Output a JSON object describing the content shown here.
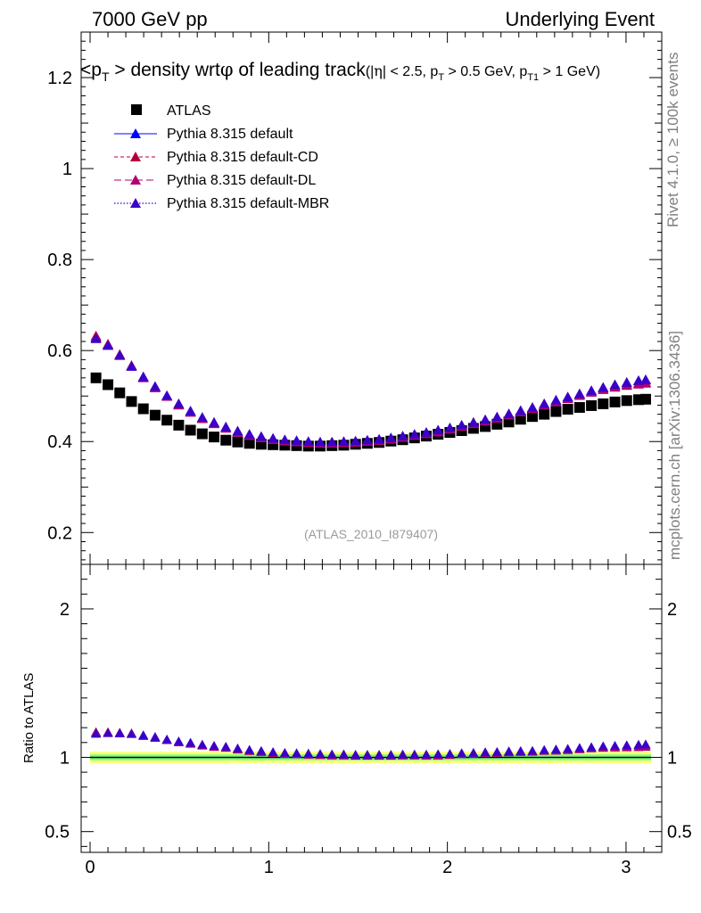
{
  "header": {
    "left": "7000 GeV pp",
    "right": "Underlying Event"
  },
  "plot_title": "<p_T> density wrt φ of leading track (|η| < 2.5, p_T > 0.5 GeV, p_T1 > 1 GeV)",
  "watermark": "(ATLAS_2010_I879407)",
  "side_text": {
    "rivet": "Rivet 4.1.0, ≥ 100k events",
    "mcplots": "mcplots.cern.ch [arXiv:1306.3436]"
  },
  "colors": {
    "atlas": "#000000",
    "default": "#0000ff",
    "cd": "#b0003a",
    "dl": "#b0006e",
    "mbr": "#3b00c8",
    "band_yellow": "#ffff80",
    "band_green": "#80ff80"
  },
  "chart_data": [
    {
      "type": "scatter",
      "title": "<p_T> density wrt φ of leading track",
      "xlabel": "",
      "ylabel": "",
      "xlim": [
        -0.05,
        3.2
      ],
      "ylim": [
        0.13,
        1.3
      ],
      "yticks": [
        0.2,
        0.4,
        0.6,
        0.8,
        1,
        1.2
      ],
      "ytick_labels": [
        "0.2",
        "0.4",
        "0.6",
        "0.8",
        "1",
        "1.2"
      ],
      "legend_position": "top-left",
      "x": [
        0.033,
        0.1,
        0.166,
        0.232,
        0.298,
        0.364,
        0.43,
        0.496,
        0.562,
        0.628,
        0.694,
        0.76,
        0.826,
        0.892,
        0.958,
        1.024,
        1.09,
        1.156,
        1.222,
        1.288,
        1.354,
        1.42,
        1.486,
        1.552,
        1.618,
        1.684,
        1.75,
        1.816,
        1.882,
        1.948,
        2.014,
        2.08,
        2.146,
        2.212,
        2.278,
        2.344,
        2.41,
        2.476,
        2.542,
        2.608,
        2.674,
        2.74,
        2.806,
        2.872,
        2.938,
        3.004,
        3.07,
        3.11
      ],
      "series": [
        {
          "name": "ATLAS",
          "marker": "square",
          "values": [
            0.54,
            0.525,
            0.507,
            0.488,
            0.472,
            0.458,
            0.447,
            0.436,
            0.425,
            0.417,
            0.41,
            0.403,
            0.399,
            0.396,
            0.394,
            0.393,
            0.392,
            0.391,
            0.39,
            0.39,
            0.391,
            0.392,
            0.394,
            0.396,
            0.398,
            0.401,
            0.404,
            0.408,
            0.412,
            0.416,
            0.42,
            0.424,
            0.429,
            0.433,
            0.438,
            0.443,
            0.449,
            0.455,
            0.46,
            0.466,
            0.471,
            0.475,
            0.479,
            0.483,
            0.487,
            0.49,
            0.492,
            0.493
          ]
        },
        {
          "name": "Pythia 8.315 default",
          "marker": "triangle",
          "values": [
            0.628,
            0.612,
            0.59,
            0.566,
            0.542,
            0.52,
            0.5,
            0.482,
            0.466,
            0.452,
            0.441,
            0.431,
            0.422,
            0.415,
            0.41,
            0.406,
            0.403,
            0.401,
            0.399,
            0.398,
            0.398,
            0.399,
            0.4,
            0.402,
            0.404,
            0.407,
            0.411,
            0.415,
            0.419,
            0.424,
            0.429,
            0.435,
            0.441,
            0.447,
            0.453,
            0.46,
            0.467,
            0.474,
            0.482,
            0.49,
            0.497,
            0.504,
            0.511,
            0.518,
            0.524,
            0.529,
            0.533,
            0.535
          ]
        },
        {
          "name": "Pythia 8.315 default-CD",
          "marker": "triangle",
          "values": [
            0.632,
            0.614,
            0.591,
            0.567,
            0.541,
            0.519,
            0.5,
            0.481,
            0.465,
            0.451,
            0.44,
            0.43,
            0.421,
            0.414,
            0.409,
            0.405,
            0.402,
            0.4,
            0.398,
            0.397,
            0.397,
            0.398,
            0.399,
            0.401,
            0.403,
            0.406,
            0.41,
            0.414,
            0.418,
            0.422,
            0.428,
            0.434,
            0.44,
            0.446,
            0.452,
            0.459,
            0.466,
            0.473,
            0.481,
            0.488,
            0.495,
            0.502,
            0.509,
            0.515,
            0.521,
            0.525,
            0.528,
            0.53
          ]
        },
        {
          "name": "Pythia 8.315 default-DL",
          "marker": "triangle",
          "values": [
            0.63,
            0.613,
            0.591,
            0.566,
            0.54,
            0.518,
            0.499,
            0.48,
            0.464,
            0.45,
            0.439,
            0.429,
            0.42,
            0.413,
            0.408,
            0.404,
            0.401,
            0.399,
            0.397,
            0.396,
            0.396,
            0.397,
            0.398,
            0.4,
            0.402,
            0.405,
            0.409,
            0.413,
            0.417,
            0.421,
            0.427,
            0.433,
            0.439,
            0.445,
            0.451,
            0.458,
            0.465,
            0.472,
            0.48,
            0.487,
            0.494,
            0.501,
            0.508,
            0.514,
            0.519,
            0.523,
            0.526,
            0.528
          ]
        },
        {
          "name": "Pythia 8.315 default-MBR",
          "marker": "triangle",
          "values": [
            0.626,
            0.611,
            0.589,
            0.565,
            0.542,
            0.521,
            0.501,
            0.483,
            0.467,
            0.453,
            0.442,
            0.432,
            0.423,
            0.416,
            0.411,
            0.407,
            0.404,
            0.402,
            0.4,
            0.399,
            0.399,
            0.4,
            0.401,
            0.403,
            0.405,
            0.408,
            0.412,
            0.416,
            0.42,
            0.425,
            0.43,
            0.436,
            0.442,
            0.448,
            0.454,
            0.461,
            0.468,
            0.475,
            0.483,
            0.491,
            0.498,
            0.505,
            0.512,
            0.519,
            0.525,
            0.53,
            0.534,
            0.536
          ]
        }
      ]
    },
    {
      "type": "line",
      "title": "",
      "ylabel": "Ratio to ATLAS",
      "xlabel": "",
      "xlim": [
        -0.05,
        3.2
      ],
      "ylim": [
        0.36,
        2.3
      ],
      "xticks": [
        0,
        1,
        2,
        3
      ],
      "xtick_labels": [
        "0",
        "1",
        "2",
        "3"
      ],
      "yticks": [
        0.5,
        1,
        2
      ],
      "ytick_labels": [
        "0.5",
        "1",
        "2"
      ],
      "band": {
        "yellow": [
          0.96,
          1.04
        ],
        "green": [
          0.98,
          1.02
        ]
      }
    }
  ]
}
